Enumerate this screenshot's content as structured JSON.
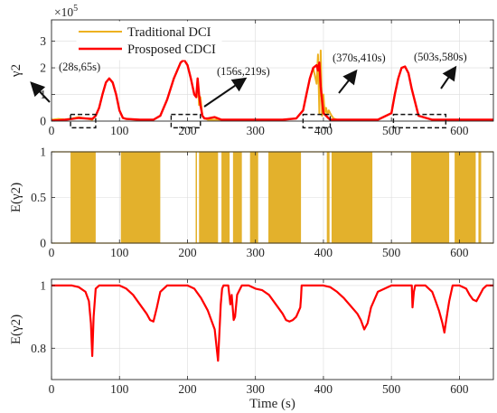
{
  "colors": {
    "dci": "#EDB120",
    "cdci": "#FF0000",
    "fill": "#E3B12C"
  },
  "chart_data": [
    {
      "type": "line",
      "ylabel": "γ2",
      "exponent_label": "×10",
      "exponent_power": "5",
      "xlim": [
        0,
        650
      ],
      "ylim": [
        0,
        3.8
      ],
      "xticks": [
        0,
        100,
        200,
        300,
        400,
        500,
        600
      ],
      "yticks": [
        0,
        1,
        2,
        3
      ],
      "grid": true,
      "legend": {
        "position": "top-left",
        "entries": [
          "Traditional DCI",
          "Prosposed CDCI"
        ]
      },
      "annotations": [
        "(28s,65s)",
        "(156s,219s)",
        "(370s,410s)",
        "(503s,580s)"
      ],
      "series": [
        {
          "name": "Traditional DCI",
          "x": [
            0,
            10,
            20,
            30,
            40,
            50,
            60,
            65,
            70,
            75,
            80,
            85,
            90,
            95,
            100,
            105,
            110,
            130,
            150,
            160,
            170,
            180,
            190,
            195,
            200,
            205,
            210,
            213,
            215,
            217,
            219,
            222,
            225,
            230,
            240,
            260,
            300,
            340,
            360,
            370,
            375,
            380,
            385,
            390,
            392,
            394,
            396,
            398,
            400,
            402,
            404,
            406,
            408,
            410,
            412,
            415,
            420,
            440,
            480,
            500,
            505,
            510,
            515,
            520,
            525,
            530,
            540,
            560,
            580,
            600,
            620,
            650
          ],
          "values": [
            0.05,
            0.08,
            0.06,
            0.1,
            0.15,
            0.1,
            0.05,
            0.2,
            0.5,
            1.0,
            1.45,
            1.6,
            1.45,
            1.0,
            0.4,
            0.12,
            0.08,
            0.05,
            0.05,
            0.2,
            0.8,
            1.6,
            2.2,
            2.3,
            2.1,
            1.6,
            1.0,
            0.9,
            1.6,
            0.6,
            0.9,
            0.2,
            0.1,
            0.05,
            0.05,
            0.05,
            0.05,
            0.05,
            0.1,
            0.4,
            1.0,
            1.6,
            2.0,
            1.4,
            2.5,
            0.3,
            2.65,
            0.2,
            1.0,
            0.3,
            0.5,
            0.25,
            0.4,
            0.3,
            0.2,
            0.1,
            0.05,
            0.05,
            0.05,
            0.3,
            1.0,
            1.6,
            2.0,
            2.05,
            1.8,
            1.2,
            0.2,
            0.05,
            0.05,
            0.05,
            0.05,
            0.05
          ]
        },
        {
          "name": "Prosposed CDCI",
          "x": [
            0,
            10,
            20,
            30,
            40,
            50,
            60,
            65,
            70,
            75,
            80,
            85,
            90,
            95,
            100,
            105,
            110,
            130,
            150,
            160,
            170,
            180,
            190,
            195,
            200,
            205,
            210,
            213,
            215,
            217,
            219,
            222,
            225,
            230,
            240,
            250,
            260,
            300,
            340,
            360,
            370,
            375,
            380,
            385,
            390,
            392,
            394,
            396,
            398,
            400,
            402,
            404,
            406,
            408,
            410,
            415,
            420,
            440,
            480,
            500,
            505,
            510,
            515,
            520,
            525,
            530,
            540,
            560,
            580,
            600,
            620,
            650
          ],
          "values": [
            0.02,
            0.03,
            0.05,
            0.08,
            0.12,
            0.1,
            0.08,
            0.2,
            0.5,
            1.0,
            1.45,
            1.6,
            1.45,
            1.0,
            0.4,
            0.12,
            0.08,
            0.05,
            0.05,
            0.2,
            0.8,
            1.6,
            2.2,
            2.3,
            2.1,
            1.6,
            1.0,
            0.9,
            1.6,
            1.0,
            0.6,
            0.2,
            0.1,
            0.1,
            0.15,
            0.05,
            0.05,
            0.05,
            0.05,
            0.1,
            0.4,
            1.0,
            1.6,
            2.0,
            2.1,
            1.9,
            2.2,
            1.3,
            0.8,
            0.3,
            0.25,
            0.2,
            0.15,
            0.1,
            0.05,
            0.05,
            0.05,
            0.05,
            0.05,
            0.3,
            1.0,
            1.6,
            2.0,
            2.05,
            1.8,
            1.2,
            0.2,
            0.05,
            0.05,
            0.05,
            0.05,
            0.05
          ]
        }
      ]
    },
    {
      "type": "area",
      "ylabel": "E(γ2)",
      "xlim": [
        0,
        650
      ],
      "ylim": [
        0,
        1
      ],
      "xticks": [
        0,
        100,
        200,
        300,
        400,
        500,
        600
      ],
      "yticks": [
        0,
        0.5,
        1
      ],
      "grid": true,
      "series": [
        {
          "name": "",
          "intervals": [
            [
              28,
              65
            ],
            [
              102,
              160
            ],
            [
              212,
              214
            ],
            [
              217,
              245
            ],
            [
              250,
              262
            ],
            [
              267,
              280
            ],
            [
              292,
              304
            ],
            [
              319,
              367
            ],
            [
              405,
              409
            ],
            [
              412,
              472
            ],
            [
              529,
              585
            ],
            [
              593,
              624
            ],
            [
              628,
              632
            ]
          ]
        }
      ]
    },
    {
      "type": "line",
      "ylabel": "E(γ2)",
      "xlabel": "Time (s)",
      "xlim": [
        0,
        650
      ],
      "ylim": [
        0.7,
        1.02
      ],
      "xticks": [
        0,
        100,
        200,
        300,
        400,
        500,
        600
      ],
      "yticks": [
        0.8,
        1
      ],
      "grid": true,
      "series": [
        {
          "name": "",
          "x": [
            0,
            30,
            40,
            50,
            55,
            58,
            60,
            62,
            65,
            70,
            100,
            110,
            120,
            130,
            140,
            145,
            150,
            155,
            160,
            170,
            200,
            210,
            220,
            230,
            240,
            245,
            247,
            249,
            251,
            253,
            260,
            263,
            265,
            268,
            270,
            273,
            280,
            290,
            300,
            310,
            320,
            330,
            340,
            345,
            350,
            355,
            360,
            366,
            367,
            368,
            370,
            400,
            410,
            420,
            430,
            440,
            450,
            455,
            460,
            465,
            470,
            480,
            500,
            520,
            530,
            531,
            533,
            535,
            537,
            540,
            550,
            560,
            565,
            570,
            575,
            578,
            580,
            585,
            590,
            600,
            610,
            615,
            620,
            625,
            630,
            635,
            640,
            650
          ],
          "values": [
            1,
            1,
            0.995,
            0.98,
            0.95,
            0.88,
            0.775,
            0.9,
            0.99,
            1,
            1,
            0.99,
            0.97,
            0.94,
            0.91,
            0.89,
            0.885,
            0.93,
            0.98,
            1,
            1,
            0.99,
            0.96,
            0.92,
            0.86,
            0.76,
            0.85,
            0.94,
            0.99,
            1,
            1,
            0.94,
            0.97,
            0.89,
            0.9,
            0.97,
            1,
            1,
            0.99,
            0.985,
            0.97,
            0.94,
            0.91,
            0.89,
            0.885,
            0.89,
            0.9,
            0.93,
            0.96,
            1,
            1,
            1,
            0.995,
            0.98,
            0.96,
            0.935,
            0.91,
            0.89,
            0.86,
            0.88,
            0.93,
            0.98,
            1,
            1,
            1,
            0.93,
            0.98,
            1,
            1,
            1,
            1,
            0.98,
            0.95,
            0.92,
            0.88,
            0.85,
            0.88,
            0.95,
            1,
            1,
            0.99,
            0.97,
            0.955,
            0.95,
            0.97,
            0.99,
            1,
            1
          ]
        }
      ]
    }
  ]
}
